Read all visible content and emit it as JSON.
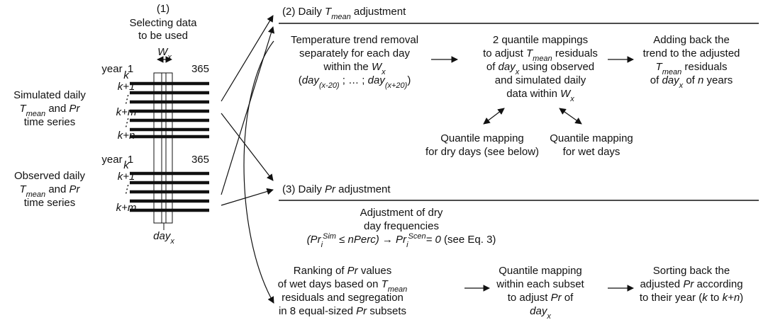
{
  "panel1": {
    "number": "(1)",
    "title_lines": [
      "Selecting data",
      "to be used"
    ],
    "window_label": [
      "W",
      "x"
    ],
    "simulated": {
      "label_lines": [
        [
          "Simulated daily"
        ],
        [
          "T",
          "mean",
          " and ",
          "Pr"
        ],
        [
          "time series"
        ]
      ],
      "year": "year",
      "start": "1",
      "end": "365",
      "rows": [
        "k",
        "k+1",
        "⋮",
        "k+m",
        "⋮",
        "k+n"
      ]
    },
    "observed": {
      "label_lines": [
        [
          "Observed daily"
        ],
        [
          "T",
          "mean",
          " and ",
          "Pr"
        ],
        [
          "time series"
        ]
      ],
      "year": "year",
      "start": "1",
      "end": "365",
      "rows": [
        "k",
        "k+1",
        "⋮",
        "k+m"
      ]
    },
    "day_label": [
      "day",
      "x"
    ]
  },
  "panel2": {
    "title": [
      "(2) Daily ",
      "T",
      "mean",
      " adjustment"
    ],
    "trend_removal": [
      [
        "Temperature trend removal"
      ],
      [
        "separately for each day"
      ],
      [
        "within the ",
        "W",
        "x"
      ],
      [
        "(",
        "day",
        "(x-20)",
        " ; … ; ",
        "day",
        "(x+20)",
        ")"
      ]
    ],
    "quantile_mappings": [
      [
        "2 quantile mappings"
      ],
      [
        "to adjust ",
        "T",
        "mean",
        " residuals"
      ],
      [
        "of ",
        "day",
        "x",
        " using observed"
      ],
      [
        "and simulated daily"
      ],
      [
        "data within ",
        "W",
        "x"
      ]
    ],
    "add_back": [
      [
        "Adding back the"
      ],
      [
        "trend to the adjusted"
      ],
      [
        "T",
        "mean",
        " residuals"
      ],
      [
        "of ",
        "day",
        "x",
        " of ",
        "n",
        " years"
      ]
    ],
    "dry_mapping": [
      [
        "Quantile mapping"
      ],
      [
        "for dry days (see below)"
      ]
    ],
    "wet_mapping": [
      [
        "Quantile mapping"
      ],
      [
        "for wet days"
      ]
    ]
  },
  "panel3": {
    "title": [
      "(3) Daily ",
      "Pr",
      " adjustment"
    ],
    "dry_frequency": [
      [
        "Adjustment of dry"
      ],
      [
        "day frequencies"
      ],
      [
        "(Pr",
        "i",
        "Sim",
        " ≤ nPerc) → Pr",
        "i",
        "Scen",
        "= 0",
        " (see Eq. 3)"
      ]
    ],
    "ranking": [
      [
        "Ranking of ",
        "Pr",
        " values"
      ],
      [
        "of wet days based on ",
        "T",
        "mean"
      ],
      [
        "residuals and segregation"
      ],
      [
        "in 8 equal-sized ",
        "Pr",
        " subsets"
      ]
    ],
    "subset_mapping": [
      [
        "Quantile mapping"
      ],
      [
        "within each subset"
      ],
      [
        "to adjust ",
        "Pr",
        " of"
      ],
      [
        "day",
        "x"
      ]
    ],
    "sorting": [
      [
        "Sorting back the"
      ],
      [
        "adjusted ",
        "Pr",
        " according"
      ],
      [
        "to their year (",
        "k",
        " to ",
        "k+n",
        ")"
      ]
    ]
  }
}
